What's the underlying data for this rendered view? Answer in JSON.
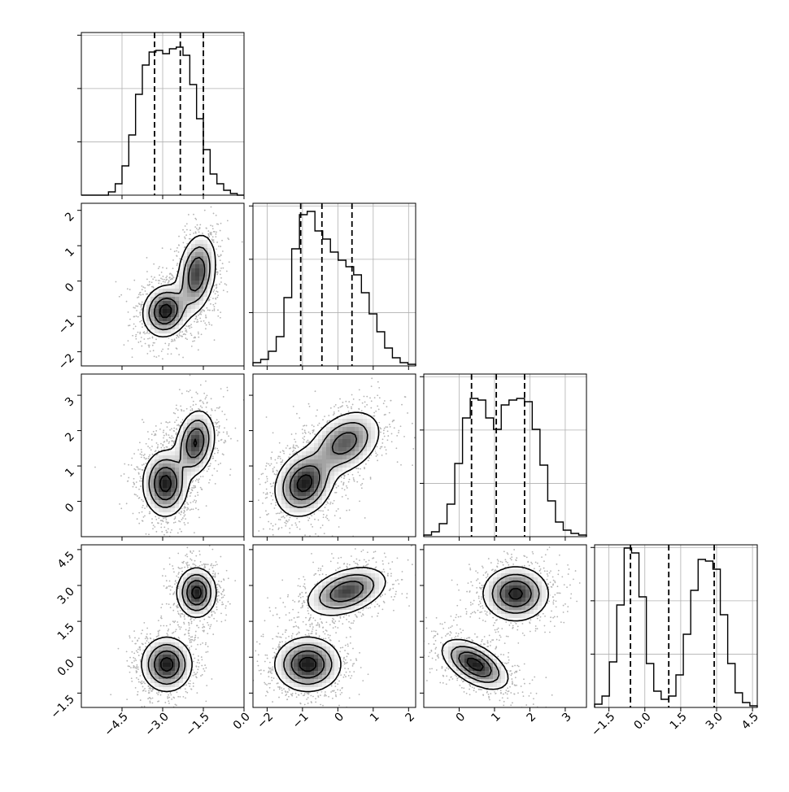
{
  "chart_data": {
    "type": "corner",
    "title": "",
    "style": {
      "grid": true,
      "line_color": "#000000",
      "scatter_color": "#b4b4b4"
    },
    "parameters": [
      {
        "name": "",
        "range": [
          -6,
          0
        ],
        "tick_values": [
          -4.5,
          -3.0,
          -1.5,
          0.0
        ],
        "tick_labels": [
          "−4.5",
          "−3.0",
          "−1.5",
          "0.0"
        ],
        "quantiles": [
          -3.3,
          -2.35,
          -1.5
        ],
        "histogram": [
          0,
          0,
          0,
          0,
          0.02,
          0.07,
          0.18,
          0.37,
          0.62,
          0.8,
          0.88,
          0.89,
          0.87,
          0.9,
          0.91,
          0.86,
          0.68,
          0.47,
          0.28,
          0.13,
          0.07,
          0.03,
          0.01,
          0
        ]
      },
      {
        "name": "",
        "range": [
          -2.4,
          2.2
        ],
        "tick_values": [
          -2,
          -1,
          0,
          1,
          2
        ],
        "tick_labels": [
          "−2",
          "−1",
          "0",
          "1",
          "2"
        ],
        "quantiles": [
          -1.05,
          -0.45,
          0.4
        ],
        "histogram": [
          0.02,
          0.04,
          0.09,
          0.18,
          0.42,
          0.72,
          0.93,
          0.95,
          0.83,
          0.78,
          0.7,
          0.65,
          0.61,
          0.56,
          0.45,
          0.32,
          0.21,
          0.11,
          0.05,
          0.02,
          0.01
        ]
      },
      {
        "name": "",
        "range": [
          -1,
          3.6
        ],
        "tick_values": [
          0,
          1,
          2,
          3
        ],
        "tick_labels": [
          "0",
          "1",
          "2",
          "3"
        ],
        "quantiles": [
          0.35,
          1.05,
          1.85
        ],
        "histogram": [
          0.01,
          0.03,
          0.08,
          0.2,
          0.45,
          0.73,
          0.85,
          0.84,
          0.73,
          0.66,
          0.81,
          0.84,
          0.85,
          0.83,
          0.66,
          0.44,
          0.22,
          0.09,
          0.04,
          0.02,
          0.01
        ]
      },
      {
        "name": "",
        "range": [
          -2.1,
          4.7
        ],
        "tick_values": [
          -1.5,
          0.0,
          1.5,
          3.0,
          4.5
        ],
        "tick_labels": [
          "−1.5",
          "0.0",
          "1.5",
          "3.0",
          "4.5"
        ],
        "quantiles": [
          -0.6,
          1.0,
          2.9
        ],
        "histogram": [
          0.02,
          0.07,
          0.28,
          0.63,
          0.98,
          0.95,
          0.68,
          0.27,
          0.1,
          0.05,
          0.07,
          0.2,
          0.45,
          0.72,
          0.91,
          0.9,
          0.85,
          0.57,
          0.27,
          0.09,
          0.03,
          0.01
        ]
      }
    ],
    "pairs": [
      {
        "x": 0,
        "y": 1,
        "modes": [
          {
            "cx": -2.9,
            "cy": -0.85,
            "sx": 0.4,
            "sy": 0.35,
            "r": 0.1,
            "w": 1.0
          },
          {
            "cx": -1.75,
            "cy": 0.2,
            "sx": 0.35,
            "sy": 0.55,
            "r": 0.25,
            "w": 0.85
          }
        ]
      },
      {
        "x": 0,
        "y": 2,
        "modes": [
          {
            "cx": -2.9,
            "cy": 0.5,
            "sx": 0.4,
            "sy": 0.45,
            "r": 0.0,
            "w": 1.0
          },
          {
            "cx": -1.8,
            "cy": 1.65,
            "sx": 0.35,
            "sy": 0.45,
            "r": 0.2,
            "w": 0.9
          }
        ]
      },
      {
        "x": 0,
        "y": 3,
        "modes": [
          {
            "cx": -2.85,
            "cy": -0.3,
            "sx": 0.45,
            "sy": 0.55,
            "r": 0.0,
            "w": 1.0
          },
          {
            "cx": -1.75,
            "cy": 2.7,
            "sx": 0.35,
            "sy": 0.5,
            "r": 0.0,
            "w": 1.0
          }
        ]
      },
      {
        "x": 1,
        "y": 2,
        "modes": [
          {
            "cx": -0.95,
            "cy": 0.5,
            "sx": 0.4,
            "sy": 0.45,
            "r": 0.2,
            "w": 1.0
          },
          {
            "cx": 0.2,
            "cy": 1.65,
            "sx": 0.5,
            "sy": 0.45,
            "r": 0.35,
            "w": 0.75
          }
        ]
      },
      {
        "x": 1,
        "y": 3,
        "modes": [
          {
            "cx": -0.85,
            "cy": -0.3,
            "sx": 0.45,
            "sy": 0.55,
            "r": 0.0,
            "w": 1.0
          },
          {
            "cx": 0.25,
            "cy": 2.75,
            "sx": 0.55,
            "sy": 0.5,
            "r": 0.4,
            "w": 0.85
          }
        ]
      },
      {
        "x": 2,
        "y": 3,
        "modes": [
          {
            "cx": 0.45,
            "cy": -0.3,
            "sx": 0.45,
            "sy": 0.5,
            "r": -0.55,
            "w": 1.0
          },
          {
            "cx": 1.6,
            "cy": 2.65,
            "sx": 0.45,
            "sy": 0.55,
            "r": 0.0,
            "w": 0.95
          }
        ]
      }
    ]
  }
}
